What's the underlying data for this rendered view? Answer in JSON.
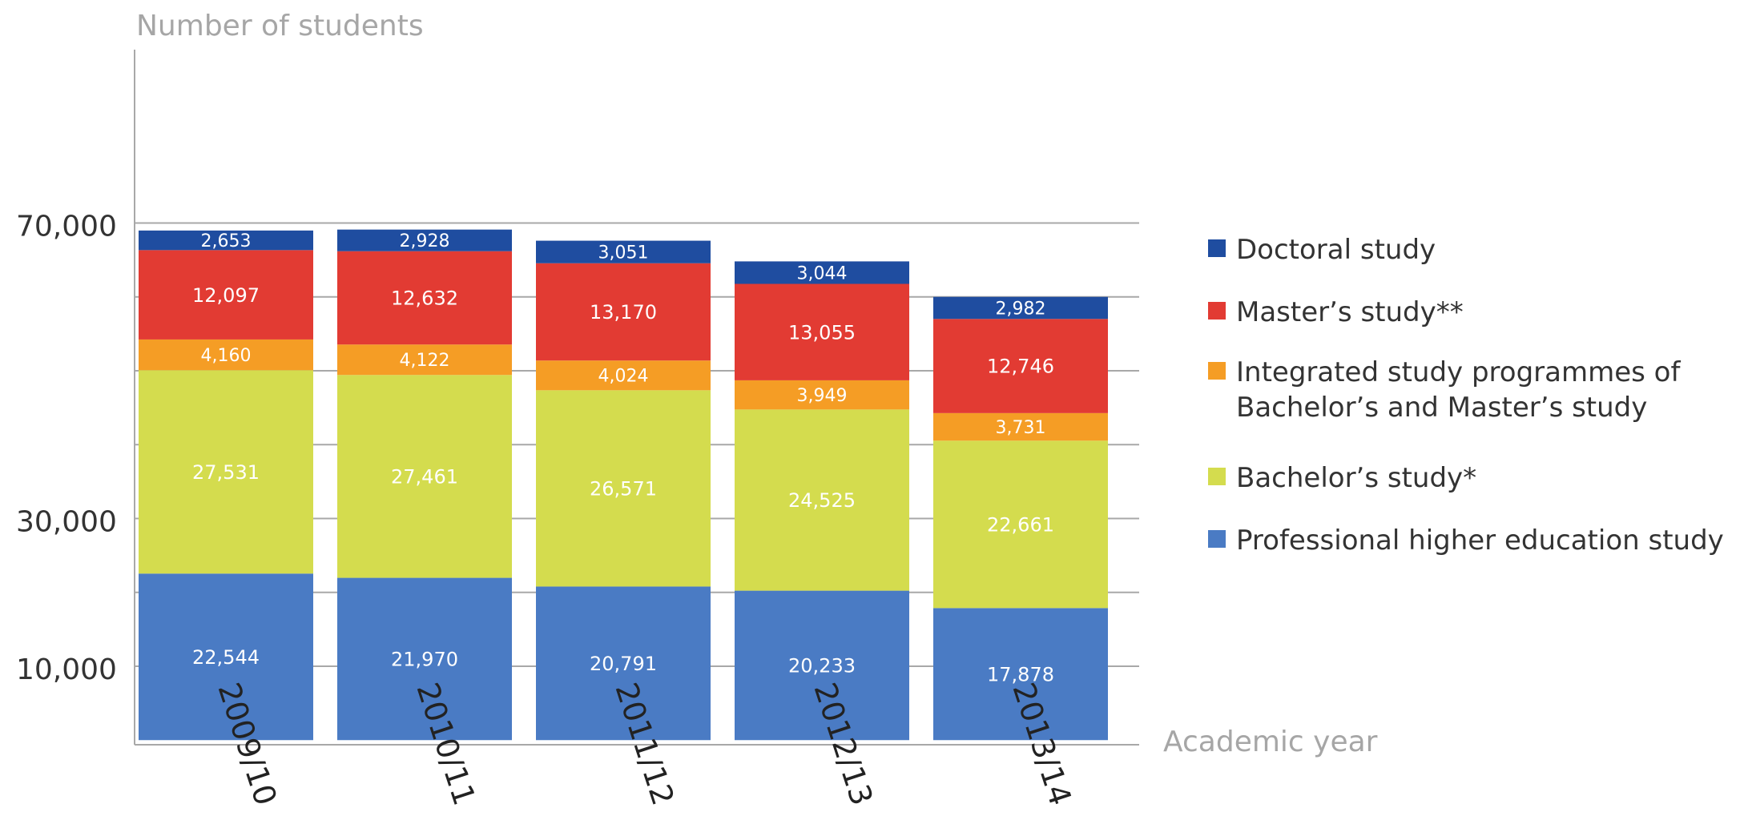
{
  "chart_data": {
    "type": "bar",
    "stacked": true,
    "title": "",
    "ylabel": "Number of students",
    "xlabel": "Academic year",
    "categories": [
      "2009/10",
      "2010/11",
      "2011/12",
      "2012/13",
      "2013/14"
    ],
    "ylim": [
      0,
      80000
    ],
    "yticks": [
      10000,
      30000,
      70000
    ],
    "ytick_labels": [
      "10,000",
      "30,000",
      "70,000"
    ],
    "gridlines": [
      10000,
      20000,
      30000,
      40000,
      50000,
      60000,
      70000
    ],
    "grid": true,
    "legend_position": "right",
    "series": [
      {
        "name": "Professional higher education study",
        "color": "#4a7bc4",
        "values": [
          22544,
          21970,
          20791,
          20233,
          17878
        ],
        "labels": [
          "22,544",
          "21,970",
          "20,791",
          "20,233",
          "17,878"
        ]
      },
      {
        "name": "Bachelor’s study*",
        "color": "#d4dc4e",
        "values": [
          27531,
          27461,
          26571,
          24525,
          22661
        ],
        "labels": [
          "27,531",
          "27,461",
          "26,571",
          "24,525",
          "22,661"
        ]
      },
      {
        "name": "Integrated study programmes of Bachelor’s and Master’s study",
        "legend_lines": [
          "Integrated study programmes of",
          "Bachelor’s and Master’s study"
        ],
        "color": "#f59d25",
        "values": [
          4160,
          4122,
          4024,
          3949,
          3731
        ],
        "labels": [
          "4,160",
          "4,122",
          "4,024",
          "3,949",
          "3,731"
        ]
      },
      {
        "name": "Master’s study**",
        "color": "#e23b33",
        "values": [
          12097,
          12632,
          13170,
          13055,
          12746
        ],
        "labels": [
          "12,097",
          "12,632",
          "13,170",
          "13,055",
          "12,746"
        ]
      },
      {
        "name": "Doctoral study",
        "color": "#1f4da0",
        "values": [
          2653,
          2928,
          3051,
          3044,
          2982
        ],
        "labels": [
          "2,653",
          "2,928",
          "3,051",
          "3,044",
          "2,982"
        ]
      }
    ],
    "legend_order": [
      4,
      3,
      2,
      1,
      0
    ]
  }
}
